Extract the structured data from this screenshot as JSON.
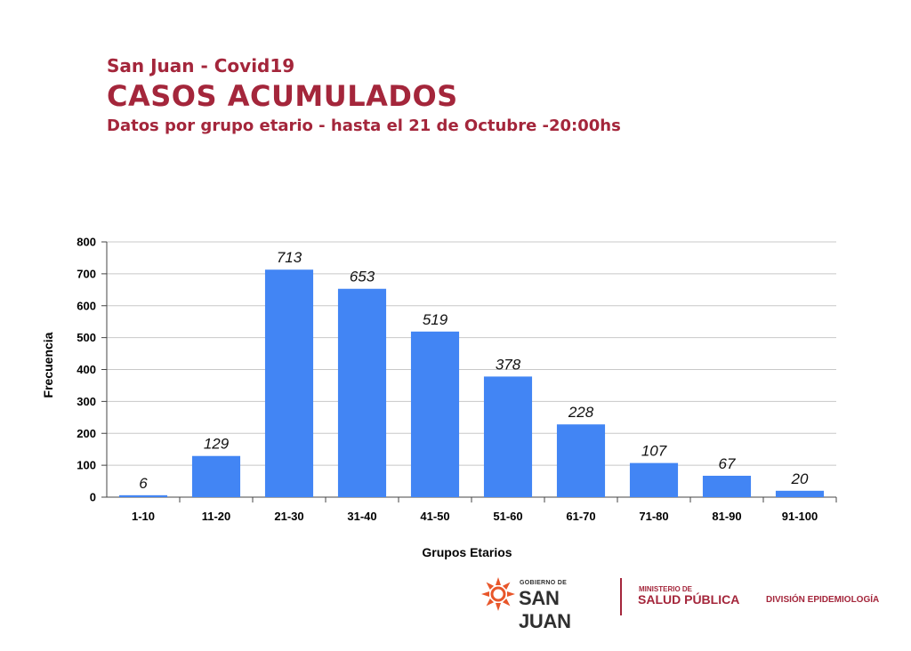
{
  "header": {
    "line1": "San Juan - Covid19",
    "line2": "CASOS ACUMULADOS",
    "line3": "Datos por grupo etario - hasta el 21 de Octubre -20:00hs"
  },
  "chart_data": {
    "type": "bar",
    "categories": [
      "1-10",
      "11-20",
      "21-30",
      "31-40",
      "41-50",
      "51-60",
      "61-70",
      "71-80",
      "81-90",
      "91-100"
    ],
    "values": [
      6,
      129,
      713,
      653,
      519,
      378,
      228,
      107,
      67,
      20
    ],
    "data_labels": [
      "6",
      "129",
      "713",
      "653",
      "519",
      "378",
      "228",
      "107",
      "67",
      "20"
    ],
    "xlabel": "Grupos Etarios",
    "ylabel": "Frecuencia",
    "ylim": [
      0,
      800
    ],
    "yticks": [
      0,
      100,
      200,
      300,
      400,
      500,
      600,
      700,
      800
    ],
    "grid": true,
    "bar_color": "#4285f4",
    "grid_color": "#c8c8c8",
    "legend": "none"
  },
  "footer": {
    "gob_small": "GOBIERNO DE",
    "gob_big": "SAN JUAN",
    "min_small": "MINISTERIO DE",
    "min_big": "SALUD PÚBLICA",
    "division": "DIVISIÓN EPIDEMIOLOGÍA"
  },
  "colors": {
    "accent": "#a4263b",
    "logo_orange": "#e8562a"
  }
}
